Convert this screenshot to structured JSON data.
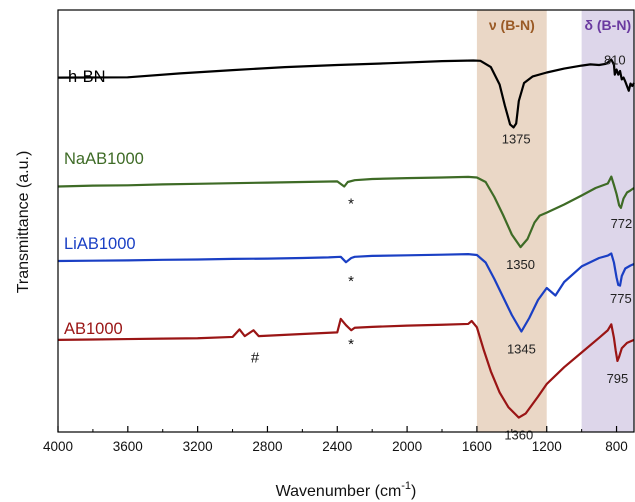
{
  "chart_data": {
    "type": "line",
    "title": "",
    "xlabel": "Wavenumber (cm",
    "xlabel_sup": "-1",
    "xlabel_close": ")",
    "ylabel": "Transmittance (a.u.)",
    "xlim": [
      4000,
      700
    ],
    "x_reversed": true,
    "x_ticks": [
      4000,
      3600,
      3200,
      2800,
      2400,
      2000,
      1600,
      1200,
      800
    ],
    "y_ticks": false,
    "grid": false,
    "bands": [
      {
        "label": "ν (B-N)",
        "from": 1600,
        "to": 1200,
        "color": "#ead7c6",
        "label_color": "#9a5a25"
      },
      {
        "label": "δ (B-N)",
        "from": 1000,
        "to": 700,
        "color": "#ddd6ea",
        "label_color": "#6a3aa0"
      }
    ],
    "series": [
      {
        "name": "h-BN",
        "color": "#000000",
        "points": [
          [
            4000,
            0.08
          ],
          [
            3600,
            0.09
          ],
          [
            3300,
            0.22
          ],
          [
            3000,
            0.33
          ],
          [
            2700,
            0.43
          ],
          [
            2400,
            0.5
          ],
          [
            2100,
            0.56
          ],
          [
            1800,
            0.63
          ],
          [
            1620,
            0.65
          ],
          [
            1580,
            0.64
          ],
          [
            1520,
            0.43
          ],
          [
            1470,
            -0.15
          ],
          [
            1440,
            -0.85
          ],
          [
            1410,
            -1.48
          ],
          [
            1390,
            -1.58
          ],
          [
            1375,
            -1.45
          ],
          [
            1360,
            -0.7
          ],
          [
            1330,
            -0.1
          ],
          [
            1280,
            0.12
          ],
          [
            1200,
            0.25
          ],
          [
            1100,
            0.38
          ],
          [
            1000,
            0.48
          ],
          [
            950,
            0.52
          ],
          [
            900,
            0.5
          ],
          [
            860,
            0.54
          ],
          [
            830,
            0.68
          ],
          [
            815,
            0.52
          ],
          [
            810,
            0.18
          ],
          [
            800,
            0.35
          ],
          [
            790,
            0.18
          ],
          [
            780,
            0.3
          ],
          [
            770,
            0.02
          ],
          [
            760,
            0.08
          ],
          [
            750,
            -0.05
          ],
          [
            730,
            -0.36
          ],
          [
            720,
            -0.12
          ],
          [
            710,
            -0.2
          ],
          [
            700,
            -0.1
          ]
        ],
        "peaks": [
          {
            "x": 1375,
            "label": "1375"
          },
          {
            "x": 810,
            "label": "810"
          }
        ]
      },
      {
        "name": "NaAB1000",
        "color": "#3e6b26",
        "points": [
          [
            4000,
            0.05
          ],
          [
            3800,
            0.08
          ],
          [
            3600,
            0.09
          ],
          [
            3400,
            0.12
          ],
          [
            3200,
            0.14
          ],
          [
            3000,
            0.16
          ],
          [
            2800,
            0.18
          ],
          [
            2600,
            0.2
          ],
          [
            2400,
            0.22
          ],
          [
            2360,
            0.05
          ],
          [
            2340,
            0.2
          ],
          [
            2300,
            0.26
          ],
          [
            2200,
            0.3
          ],
          [
            2000,
            0.33
          ],
          [
            1800,
            0.35
          ],
          [
            1650,
            0.37
          ],
          [
            1600,
            0.35
          ],
          [
            1550,
            0.2
          ],
          [
            1500,
            -0.3
          ],
          [
            1450,
            -0.9
          ],
          [
            1400,
            -1.55
          ],
          [
            1350,
            -1.97
          ],
          [
            1310,
            -1.7
          ],
          [
            1270,
            -1.15
          ],
          [
            1240,
            -0.92
          ],
          [
            1200,
            -0.82
          ],
          [
            1100,
            -0.55
          ],
          [
            1000,
            -0.25
          ],
          [
            920,
            0.0
          ],
          [
            850,
            0.15
          ],
          [
            830,
            0.38
          ],
          [
            815,
            0.1
          ],
          [
            800,
            -0.2
          ],
          [
            785,
            -0.58
          ],
          [
            775,
            -0.66
          ],
          [
            760,
            -0.35
          ],
          [
            740,
            -0.15
          ],
          [
            720,
            -0.08
          ],
          [
            700,
            0.0
          ]
        ],
        "peaks": [
          {
            "x": 1350,
            "label": "1350"
          },
          {
            "x": 772,
            "label": "772"
          }
        ]
      },
      {
        "name": "LiAB1000",
        "color": "#1a3fc4",
        "points": [
          [
            4000,
            0.1
          ],
          [
            3800,
            0.11
          ],
          [
            3600,
            0.12
          ],
          [
            3400,
            0.14
          ],
          [
            3200,
            0.15
          ],
          [
            3000,
            0.17
          ],
          [
            2800,
            0.18
          ],
          [
            2600,
            0.2
          ],
          [
            2450,
            0.22
          ],
          [
            2380,
            0.24
          ],
          [
            2350,
            0.06
          ],
          [
            2320,
            0.2
          ],
          [
            2300,
            0.24
          ],
          [
            2200,
            0.27
          ],
          [
            2000,
            0.29
          ],
          [
            1800,
            0.31
          ],
          [
            1650,
            0.33
          ],
          [
            1600,
            0.3
          ],
          [
            1550,
            0.05
          ],
          [
            1500,
            -0.5
          ],
          [
            1450,
            -1.1
          ],
          [
            1400,
            -1.7
          ],
          [
            1345,
            -2.25
          ],
          [
            1300,
            -1.8
          ],
          [
            1250,
            -1.2
          ],
          [
            1200,
            -0.8
          ],
          [
            1150,
            -1.05
          ],
          [
            1100,
            -0.6
          ],
          [
            1000,
            -0.08
          ],
          [
            900,
            0.2
          ],
          [
            850,
            0.28
          ],
          [
            830,
            0.35
          ],
          [
            815,
            0.05
          ],
          [
            800,
            -0.45
          ],
          [
            790,
            -0.7
          ],
          [
            780,
            -0.72
          ],
          [
            770,
            -0.4
          ],
          [
            750,
            -0.15
          ],
          [
            720,
            -0.05
          ],
          [
            700,
            0.0
          ]
        ],
        "peaks": [
          {
            "x": 1345,
            "label": "1345"
          },
          {
            "x": 775,
            "label": "775"
          }
        ]
      },
      {
        "name": "AB1000",
        "color": "#9a1515",
        "points": [
          [
            4000,
            0.05
          ],
          [
            3800,
            0.06
          ],
          [
            3600,
            0.07
          ],
          [
            3400,
            0.08
          ],
          [
            3200,
            0.09
          ],
          [
            3000,
            0.12
          ],
          [
            2960,
            0.3
          ],
          [
            2930,
            0.14
          ],
          [
            2880,
            0.28
          ],
          [
            2850,
            0.14
          ],
          [
            2600,
            0.19
          ],
          [
            2400,
            0.23
          ],
          [
            2380,
            0.55
          ],
          [
            2350,
            0.4
          ],
          [
            2320,
            0.28
          ],
          [
            2300,
            0.34
          ],
          [
            2200,
            0.36
          ],
          [
            2000,
            0.39
          ],
          [
            1800,
            0.41
          ],
          [
            1650,
            0.43
          ],
          [
            1630,
            0.5
          ],
          [
            1600,
            0.35
          ],
          [
            1560,
            -0.2
          ],
          [
            1520,
            -0.7
          ],
          [
            1470,
            -1.2
          ],
          [
            1420,
            -1.55
          ],
          [
            1360,
            -1.8
          ],
          [
            1320,
            -1.7
          ],
          [
            1250,
            -1.3
          ],
          [
            1200,
            -1.0
          ],
          [
            1100,
            -0.6
          ],
          [
            1000,
            -0.25
          ],
          [
            900,
            0.1
          ],
          [
            850,
            0.28
          ],
          [
            830,
            0.42
          ],
          [
            815,
            0.1
          ],
          [
            805,
            -0.2
          ],
          [
            795,
            -0.45
          ],
          [
            785,
            -0.35
          ],
          [
            770,
            -0.15
          ],
          [
            740,
            -0.02
          ],
          [
            700,
            0.05
          ]
        ],
        "peaks": [
          {
            "x": 1360,
            "label": "1360"
          },
          {
            "x": 795,
            "label": "795"
          }
        ]
      }
    ],
    "annotations": [
      {
        "text": "*",
        "x": 2350,
        "series": "NaAB1000"
      },
      {
        "text": "*",
        "x": 2350,
        "series": "LiAB1000"
      },
      {
        "text": "*",
        "x": 2350,
        "series": "AB1000"
      },
      {
        "text": "#",
        "x": 2900,
        "series": "AB1000"
      }
    ]
  }
}
